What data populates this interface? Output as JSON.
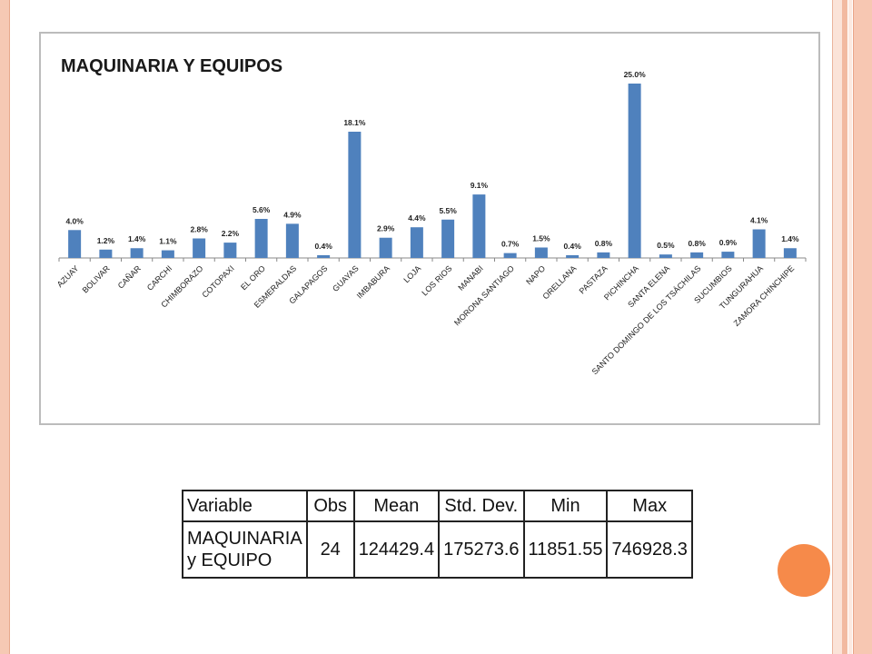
{
  "chart_data": {
    "type": "bar",
    "title": "MAQUINARIA Y EQUIPOS",
    "categories": [
      "AZUAY",
      "BOLIVAR",
      "CAÑAR",
      "CARCHI",
      "CHIMBORAZO",
      "COTOPAXI",
      "EL ORO",
      "ESMERALDAS",
      "GALAPAGOS",
      "GUAYAS",
      "IMBABURA",
      "LOJA",
      "LOS RIOS",
      "MANABI",
      "MORONA SANTIAGO",
      "NAPO",
      "ORELLANA",
      "PASTAZA",
      "PICHINCHA",
      "SANTA ELENA",
      "SANTO DOMINGO DE LOS TSÁCHILAS",
      "SUCUMBIOS",
      "TUNGURAHUA",
      "ZAMORA CHINCHIPE"
    ],
    "values": [
      4.0,
      1.2,
      1.4,
      1.1,
      2.8,
      2.2,
      5.6,
      4.9,
      0.4,
      18.1,
      2.9,
      4.4,
      5.5,
      9.1,
      0.7,
      1.5,
      0.4,
      0.8,
      25.0,
      0.5,
      0.8,
      0.9,
      4.1,
      1.4
    ],
    "value_labels": [
      "4.0%",
      "1.2%",
      "1.4%",
      "1.1%",
      "2.8%",
      "2.2%",
      "5.6%",
      "4.9%",
      "0.4%",
      "18.1%",
      "2.9%",
      "4.4%",
      "5.5%",
      "9.1%",
      "0.7%",
      "1.5%",
      "0.4%",
      "0.8%",
      "25.0%",
      "0.5%",
      "0.8%",
      "0.9%",
      "4.1%",
      "1.4%"
    ],
    "ylim": [
      0,
      25
    ],
    "bar_color": "#4f81bd",
    "grid": false,
    "legend": "none"
  },
  "stats_table": {
    "headers": [
      "Variable",
      "Obs",
      "Mean",
      "Std. Dev.",
      "Min",
      "Max"
    ],
    "row": {
      "variable_line1": "MAQUINARIA",
      "variable_line2": "y EQUIPO",
      "obs": "24",
      "mean": "124429.4",
      "std_dev": "175273.6",
      "min": "11851.55",
      "max": "746928.3"
    }
  },
  "theme": {
    "accent": "#f68a4a",
    "frame": "#f6c9b4"
  }
}
